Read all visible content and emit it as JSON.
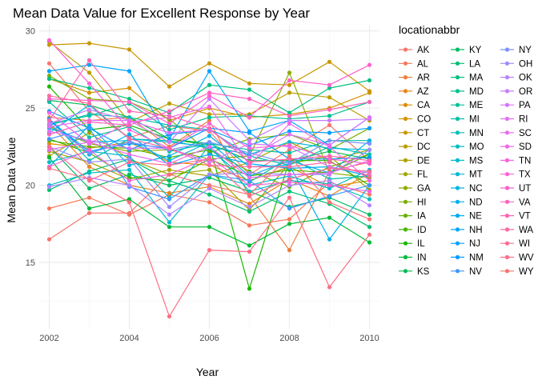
{
  "chart_data": {
    "type": "line",
    "title": "Mean Data Value for Excellent Response by Year",
    "xlabel": "Year",
    "ylabel": "Mean Data Value",
    "xlim": [
      2001.75,
      2010.25
    ],
    "ylim": [
      10.7,
      30.4
    ],
    "x_ticks": [
      2002,
      2004,
      2006,
      2008,
      2010
    ],
    "y_ticks": [
      15,
      20,
      25,
      30
    ],
    "grid": true,
    "markers": true,
    "legend": {
      "title": "locationabbr",
      "position": "right",
      "columns": 3
    },
    "x": [
      2002,
      2003,
      2004,
      2005,
      2006,
      2007,
      2008,
      2009,
      2010
    ],
    "series": [
      {
        "name": "AK",
        "color": "#F8766D",
        "values": [
          27.9,
          24.8,
          23.1,
          23.85,
          23.5,
          20.7,
          22.3,
          23.9,
          21.6
        ]
      },
      {
        "name": "AL",
        "color": "#F47A59",
        "values": [
          18.5,
          19.2,
          18.1,
          19.4,
          18.9,
          17.4,
          17.8,
          20.2,
          19.4
        ]
      },
      {
        "name": "AR",
        "color": "#EE7E41",
        "values": [
          24.4,
          24.2,
          24.4,
          22.5,
          24.2,
          19.3,
          15.8,
          20.9,
          21.5
        ]
      },
      {
        "name": "AZ",
        "color": "#E7851E",
        "values": [
          24.0,
          21.2,
          20.0,
          19.5,
          19.9,
          18.8,
          20.4,
          19.3,
          20.8
        ]
      },
      {
        "name": "CA",
        "color": "#DE8C00",
        "values": [
          22.7,
          22.4,
          22.8,
          21.5,
          21.3,
          20.3,
          21.2,
          19.9,
          20.3
        ]
      },
      {
        "name": "CO",
        "color": "#D49200",
        "values": [
          26.9,
          26.0,
          26.3,
          24.2,
          25.0,
          24.4,
          24.6,
          25.0,
          26.0
        ]
      },
      {
        "name": "CT",
        "color": "#C89700",
        "values": [
          29.1,
          29.2,
          28.8,
          26.4,
          27.9,
          26.6,
          26.5,
          28.0,
          26.1
        ]
      },
      {
        "name": "DC",
        "color": "#BB9D00",
        "values": [
          29.3,
          27.3,
          24.1,
          25.3,
          24.6,
          24.6,
          26.0,
          25.7,
          24.2
        ]
      },
      {
        "name": "DE",
        "color": "#ADA200",
        "values": [
          22.2,
          21.5,
          20.4,
          21.0,
          20.6,
          21.5,
          22.8,
          21.6,
          22.3
        ]
      },
      {
        "name": "FL",
        "color": "#9DA700",
        "values": [
          21.9,
          23.4,
          21.7,
          20.7,
          21.0,
          18.4,
          21.4,
          21.9,
          19.7
        ]
      },
      {
        "name": "GA",
        "color": "#8CAB00",
        "values": [
          23.8,
          22.7,
          22.2,
          22.3,
          21.7,
          21.9,
          27.3,
          20.8,
          20.5
        ]
      },
      {
        "name": "HI",
        "color": "#79AF00",
        "values": [
          27.1,
          25.6,
          25.4,
          24.3,
          22.1,
          23.0,
          23.3,
          22.3,
          23.7
        ]
      },
      {
        "name": "IA",
        "color": "#62B200",
        "values": [
          22.9,
          22.5,
          22.4,
          21.8,
          22.3,
          20.9,
          19.9,
          21.2,
          22.0
        ]
      },
      {
        "name": "ID",
        "color": "#45B500",
        "values": [
          23.0,
          22.1,
          20.5,
          20.3,
          21.7,
          20.6,
          21.0,
          20.8,
          22.0
        ]
      },
      {
        "name": "IL",
        "color": "#1CB800",
        "values": [
          26.4,
          23.6,
          23.9,
          23.0,
          22.6,
          13.3,
          21.6,
          21.6,
          20.0
        ]
      },
      {
        "name": "IN",
        "color": "#00BA38",
        "values": [
          21.8,
          18.5,
          19.1,
          17.3,
          17.3,
          16.1,
          17.5,
          17.9,
          16.3
        ]
      },
      {
        "name": "KS",
        "color": "#00BC50",
        "values": [
          25.5,
          25.2,
          24.4,
          23.0,
          22.7,
          21.6,
          21.6,
          22.2,
          21.7
        ]
      },
      {
        "name": "KY",
        "color": "#00BD62",
        "values": [
          22.5,
          19.8,
          20.7,
          20.0,
          20.5,
          19.6,
          18.6,
          19.2,
          18.1
        ]
      },
      {
        "name": "LA",
        "color": "#00BF72",
        "values": [
          19.7,
          20.9,
          21.7,
          20.3,
          19.4,
          18.3,
          19.6,
          18.8,
          17.3
        ]
      },
      {
        "name": "MA",
        "color": "#00C081",
        "values": [
          26.9,
          26.3,
          25.6,
          24.7,
          26.5,
          26.2,
          24.7,
          26.3,
          26.8
        ]
      },
      {
        "name": "MD",
        "color": "#00C08E",
        "values": [
          24.0,
          24.5,
          25.3,
          23.6,
          24.4,
          24.5,
          24.3,
          24.5,
          25.4
        ]
      },
      {
        "name": "ME",
        "color": "#00C19C",
        "values": [
          25.4,
          23.1,
          23.8,
          22.2,
          22.7,
          22.3,
          22.1,
          22.9,
          22.9
        ]
      },
      {
        "name": "MI",
        "color": "#00C0A9",
        "values": [
          24.3,
          21.6,
          23.0,
          22.9,
          22.4,
          20.2,
          21.8,
          20.4,
          20.6
        ]
      },
      {
        "name": "MN",
        "color": "#00BFB5",
        "values": [
          23.9,
          24.6,
          24.4,
          23.9,
          23.6,
          21.9,
          21.3,
          22.5,
          22.0
        ]
      },
      {
        "name": "MO",
        "color": "#00BDC1",
        "values": [
          21.5,
          22.2,
          21.9,
          19.2,
          22.6,
          19.6,
          20.3,
          20.1,
          19.1
        ]
      },
      {
        "name": "MS",
        "color": "#00BBCD",
        "values": [
          20.0,
          20.8,
          21.0,
          17.6,
          20.7,
          20.0,
          20.6,
          19.8,
          21.0
        ]
      },
      {
        "name": "MT",
        "color": "#00B8D8",
        "values": [
          23.4,
          25.2,
          23.0,
          22.8,
          22.5,
          22.0,
          22.8,
          22.4,
          22.3
        ]
      },
      {
        "name": "NC",
        "color": "#00B4E2",
        "values": [
          23.7,
          22.8,
          22.9,
          21.6,
          22.8,
          20.6,
          21.6,
          20.8,
          22.9
        ]
      },
      {
        "name": "ND",
        "color": "#00B0EB",
        "values": [
          21.2,
          23.9,
          21.3,
          21.9,
          23.2,
          21.2,
          21.3,
          16.5,
          20.0
        ]
      },
      {
        "name": "NE",
        "color": "#00ABF4",
        "values": [
          24.3,
          22.0,
          23.3,
          21.3,
          22.0,
          21.4,
          21.1,
          21.2,
          20.6
        ]
      },
      {
        "name": "NH",
        "color": "#00A6FB",
        "values": [
          27.4,
          27.8,
          27.4,
          23.0,
          27.4,
          23.5,
          24.2,
          22.6,
          24.4
        ]
      },
      {
        "name": "NJ",
        "color": "#00A0FF",
        "values": [
          24.8,
          23.7,
          22.3,
          23.3,
          23.6,
          22.6,
          23.5,
          23.4,
          23.7
        ]
      },
      {
        "name": "NM",
        "color": "#009AFF",
        "values": [
          24.2,
          22.2,
          22.7,
          22.4,
          23.7,
          23.4,
          21.7,
          21.7,
          21.8
        ]
      },
      {
        "name": "NV",
        "color": "#3F96FF",
        "values": [
          23.0,
          23.7,
          19.9,
          19.1,
          20.7,
          20.3,
          18.5,
          19.3,
          20.0
        ]
      },
      {
        "name": "NY",
        "color": "#7B91FF",
        "values": [
          24.0,
          22.1,
          22.8,
          22.3,
          22.8,
          22.1,
          21.4,
          22.9,
          22.7
        ]
      },
      {
        "name": "OH",
        "color": "#9D8BFF",
        "values": [
          22.5,
          21.5,
          21.7,
          18.6,
          20.7,
          20.8,
          20.7,
          20.7,
          22.3
        ]
      },
      {
        "name": "OK",
        "color": "#B584FF",
        "values": [
          19.9,
          20.5,
          20.0,
          18.1,
          19.8,
          18.6,
          20.0,
          20.3,
          18.7
        ]
      },
      {
        "name": "OR",
        "color": "#C77CFF",
        "values": [
          24.0,
          24.9,
          24.2,
          22.8,
          25.6,
          22.9,
          24.2,
          24.2,
          24.3
        ]
      },
      {
        "name": "PA",
        "color": "#D575FE",
        "values": [
          23.5,
          22.9,
          22.4,
          22.4,
          21.5,
          22.7,
          22.5,
          21.2,
          20.8
        ]
      },
      {
        "name": "RI",
        "color": "#E16FF8",
        "values": [
          23.8,
          24.2,
          24.2,
          23.4,
          23.6,
          21.8,
          23.3,
          22.6,
          24.4
        ]
      },
      {
        "name": "SC",
        "color": "#EA6AF1",
        "values": [
          22.3,
          22.8,
          22.0,
          21.4,
          22.5,
          20.5,
          20.7,
          20.8,
          21.6
        ]
      },
      {
        "name": "SD",
        "color": "#F166E9",
        "values": [
          24.7,
          22.7,
          24.1,
          24.4,
          25.1,
          21.3,
          24.0,
          22.5,
          20.3
        ]
      },
      {
        "name": "TN",
        "color": "#F763E0",
        "values": [
          21.2,
          22.3,
          20.3,
          20.7,
          21.8,
          20.0,
          20.2,
          20.0,
          19.6
        ]
      },
      {
        "name": "TX",
        "color": "#FB61D7",
        "values": [
          29.4,
          26.6,
          23.6,
          22.4,
          24.0,
          22.4,
          22.6,
          21.7,
          21.4
        ]
      },
      {
        "name": "UT",
        "color": "#FE61CC",
        "values": [
          25.6,
          25.5,
          25.4,
          24.0,
          25.8,
          24.4,
          26.8,
          26.5,
          27.8
        ]
      },
      {
        "name": "VA",
        "color": "#FF62BF",
        "values": [
          23.3,
          24.1,
          23.9,
          24.8,
          26.0,
          25.6,
          24.5,
          24.9,
          25.4
        ]
      },
      {
        "name": "VT",
        "color": "#FF65B2",
        "values": [
          24.2,
          28.1,
          24.8,
          24.5,
          23.7,
          21.5,
          21.7,
          21.9,
          21.6
        ]
      },
      {
        "name": "WA",
        "color": "#FF69A3",
        "values": [
          25.8,
          25.3,
          23.0,
          22.4,
          21.3,
          21.2,
          21.2,
          21.5,
          20.6
        ]
      },
      {
        "name": "WI",
        "color": "#FF6C93",
        "values": [
          22.5,
          20.3,
          21.5,
          21.3,
          21.7,
          19.3,
          20.4,
          21.1,
          20.9
        ]
      },
      {
        "name": "WV",
        "color": "#FC7083",
        "values": [
          21.1,
          20.4,
          18.9,
          11.5,
          15.8,
          15.7,
          19.2,
          13.4,
          16.8
        ]
      },
      {
        "name": "WY",
        "color": "#F8736F",
        "values": [
          16.5,
          18.2,
          18.2,
          20.7,
          20.0,
          19.4,
          21.9,
          18.9,
          17.8
        ]
      }
    ]
  }
}
